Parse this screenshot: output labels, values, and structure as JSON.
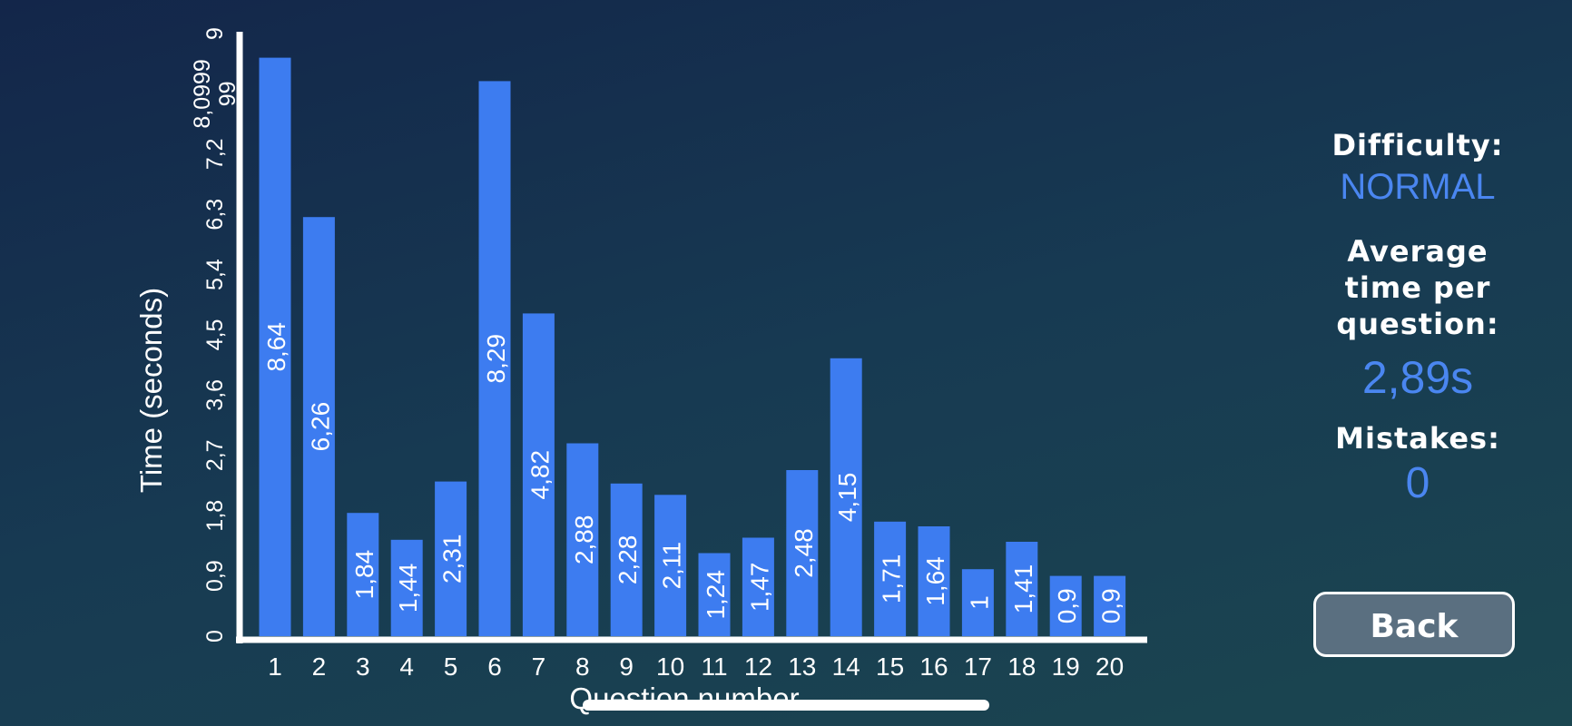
{
  "chart_data": {
    "type": "bar",
    "categories": [
      "1",
      "2",
      "3",
      "4",
      "5",
      "6",
      "7",
      "8",
      "9",
      "10",
      "11",
      "12",
      "13",
      "14",
      "15",
      "16",
      "17",
      "18",
      "19",
      "20"
    ],
    "values": [
      8.64,
      6.26,
      1.84,
      1.44,
      2.31,
      8.29,
      4.82,
      2.88,
      2.28,
      2.11,
      1.24,
      1.47,
      2.48,
      4.15,
      1.71,
      1.64,
      1,
      1.41,
      0.9,
      0.9
    ],
    "value_labels": [
      "8,64",
      "6,26",
      "1,84",
      "1,44",
      "2,31",
      "8,29",
      "4,82",
      "2,88",
      "2,28",
      "2,11",
      "1,24",
      "1,47",
      "2,48",
      "4,15",
      "1,71",
      "1,64",
      "1",
      "1,41",
      "0,9",
      "0,9"
    ],
    "yticks": [
      0,
      0.9,
      1.8,
      2.7,
      3.6,
      4.5,
      5.4,
      6.3,
      7.2,
      8.0999999,
      9
    ],
    "ytick_labels": [
      "0",
      "0,9",
      "1,8",
      "2,7",
      "3,6",
      "4,5",
      "5,4",
      "6,3",
      "7,2",
      "8,0999\n99",
      "9"
    ],
    "ylim": [
      0,
      9
    ],
    "xlabel": "Question number",
    "ylabel": "Time (seconds)",
    "title": "",
    "bar_color": "#3d7cf0",
    "grid": false
  },
  "panel": {
    "difficulty_label": "Difficulty:",
    "difficulty_value": "NORMAL",
    "avg_label": "Average\ntime per\nquestion:",
    "avg_value": "2,89s",
    "mistakes_label": "Mistakes:",
    "mistakes_value": "0"
  },
  "back_button": {
    "label": "Back"
  },
  "colors": {
    "accent": "#4a86f0",
    "button_bg": "#5a6f80"
  }
}
